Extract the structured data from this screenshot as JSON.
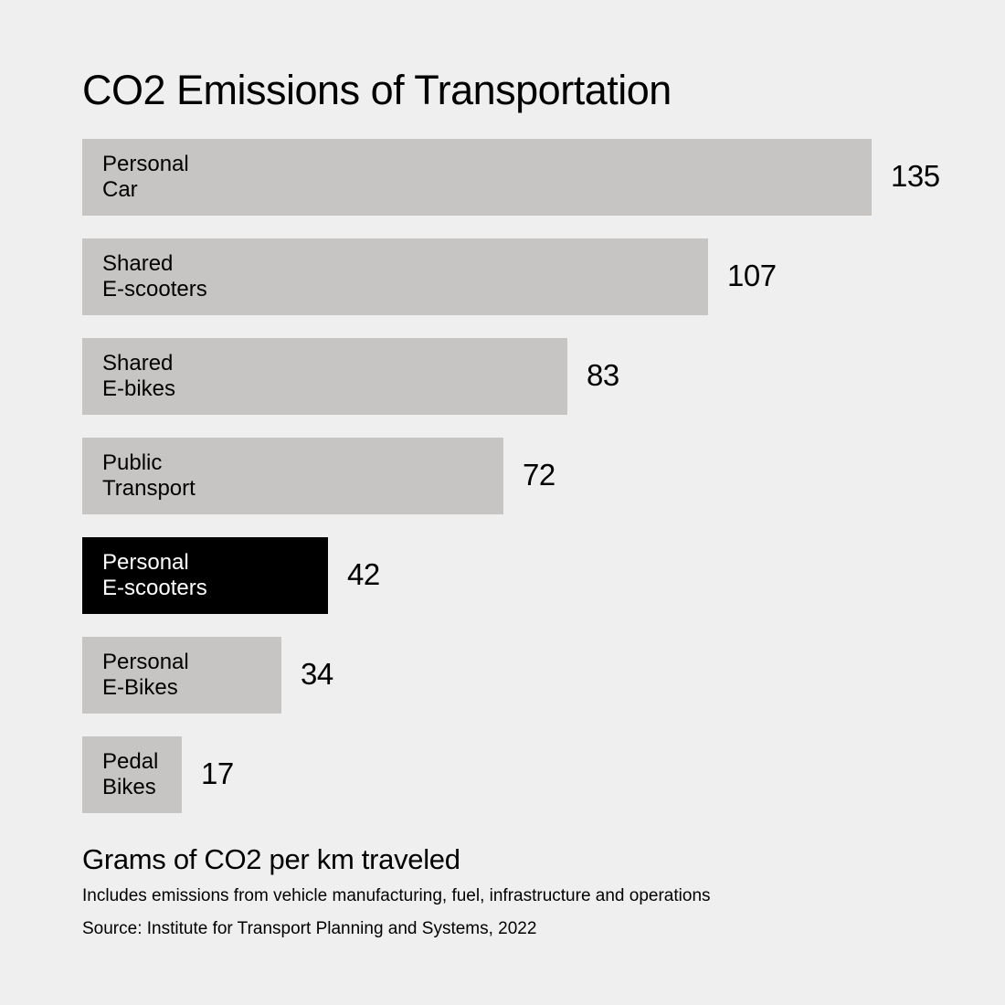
{
  "chart_data": {
    "type": "bar",
    "orientation": "horizontal",
    "title": "CO2 Emissions of Transportation",
    "subtitle": "Grams of CO2 per km traveled",
    "note": "Includes emissions from vehicle manufacturing, fuel, infrastructure and operations",
    "source": "Source: Institute for Transport Planning and Systems, 2022",
    "categories": [
      "Personal\nCar",
      "Shared\nE-scooters",
      "Shared\nE-bikes",
      "Public\nTransport",
      "Personal\nE-scooters",
      "Personal\nE-Bikes",
      "Pedal\nBikes"
    ],
    "values": [
      135,
      107,
      83,
      72,
      42,
      34,
      17
    ],
    "highlight": "Personal\nE-scooters",
    "xlim": [
      0,
      135
    ],
    "grid": false,
    "colors": {
      "bar": "#c6c5c3",
      "highlight": "#000000",
      "background": "#efefef"
    }
  }
}
